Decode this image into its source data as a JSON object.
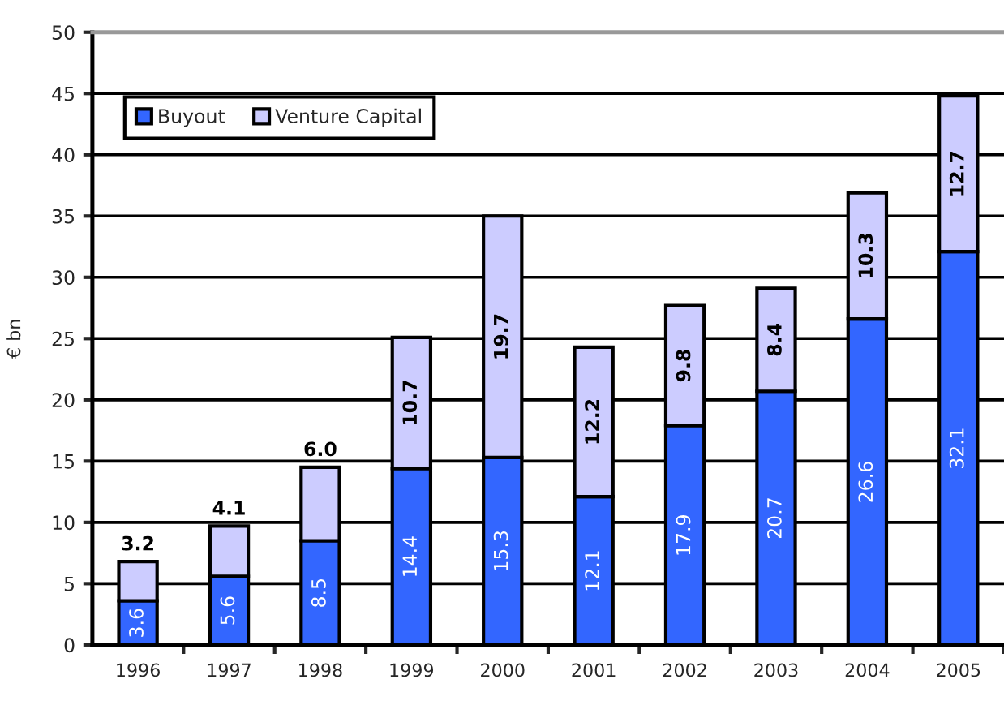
{
  "chart_data": {
    "type": "bar",
    "stacked": true,
    "categories": [
      "1996",
      "1997",
      "1998",
      "1999",
      "2000",
      "2001",
      "2002",
      "2003",
      "2004",
      "2005"
    ],
    "series": [
      {
        "name": "Buyout",
        "color": "#3366ff",
        "values": [
          3.6,
          5.6,
          8.5,
          14.4,
          15.3,
          12.1,
          17.9,
          20.7,
          26.6,
          32.1
        ],
        "value_labels": [
          "3.6",
          "5.6",
          "8.5",
          "14.4",
          "15.3",
          "12.1",
          "17.9",
          "20.7",
          "26.6",
          "32.1"
        ]
      },
      {
        "name": "Venture Capital",
        "color": "#ccccff",
        "values": [
          3.2,
          4.1,
          6.0,
          10.7,
          19.7,
          12.2,
          9.8,
          8.4,
          10.3,
          12.7
        ],
        "value_labels": [
          "3.2",
          "4.1",
          "6.0",
          "10.7",
          "19.7",
          "12.2",
          "9.8",
          "8.4",
          "10.3",
          "12.7"
        ]
      }
    ],
    "ylabel": "€ bn",
    "ylim": [
      0,
      50
    ],
    "yticks": [
      0,
      5,
      10,
      15,
      20,
      25,
      30,
      35,
      40,
      45,
      50
    ],
    "grid": "y",
    "legend": "top left"
  }
}
